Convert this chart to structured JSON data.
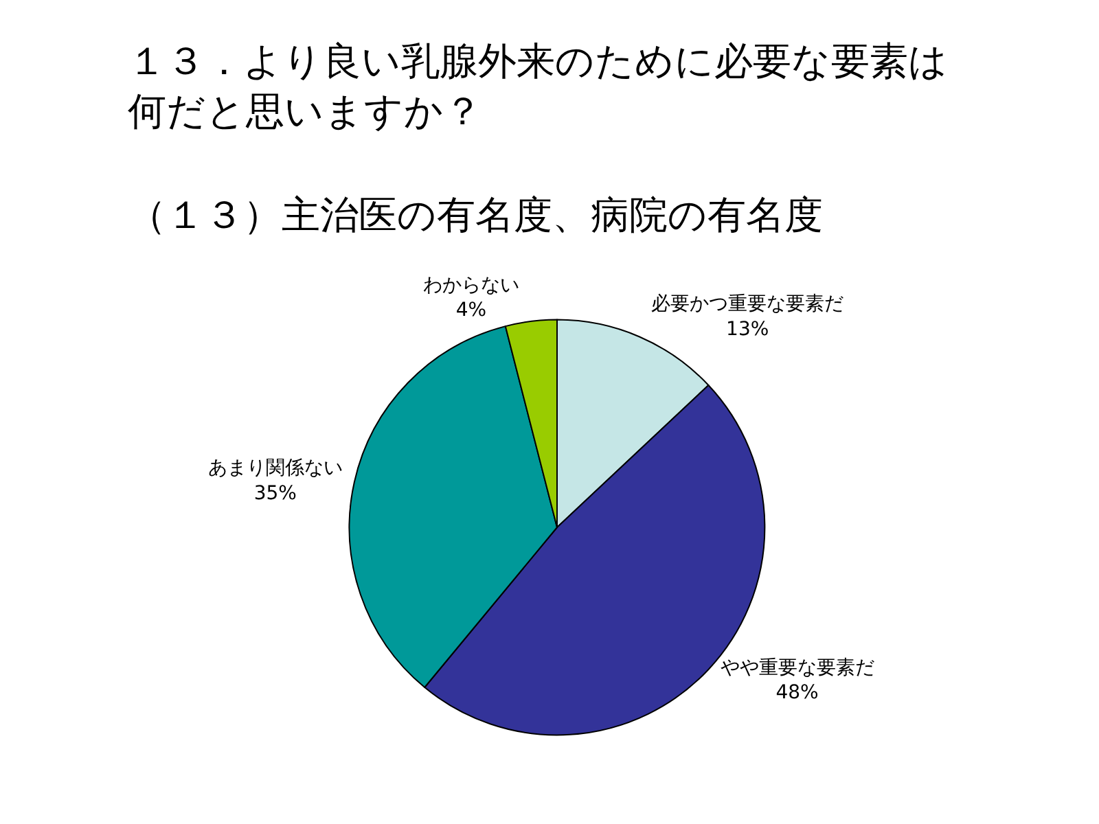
{
  "chart_data": {
    "type": "pie",
    "title": "１３．より良い乳腺外来のために必要な要素は何だと思いますか？",
    "subtitle": "（１３）主治医の有名度、病院の有名度",
    "categories": [
      "必要かつ重要な要素だ",
      "やや重要な要素だ",
      "あまり関係ない",
      "わからない"
    ],
    "values": [
      13,
      48,
      35,
      4
    ],
    "value_labels": [
      "13%",
      "48%",
      "35%",
      "4%"
    ],
    "colors": [
      "#c5e6e6",
      "#333399",
      "#009999",
      "#99cc00"
    ],
    "legend": false
  }
}
